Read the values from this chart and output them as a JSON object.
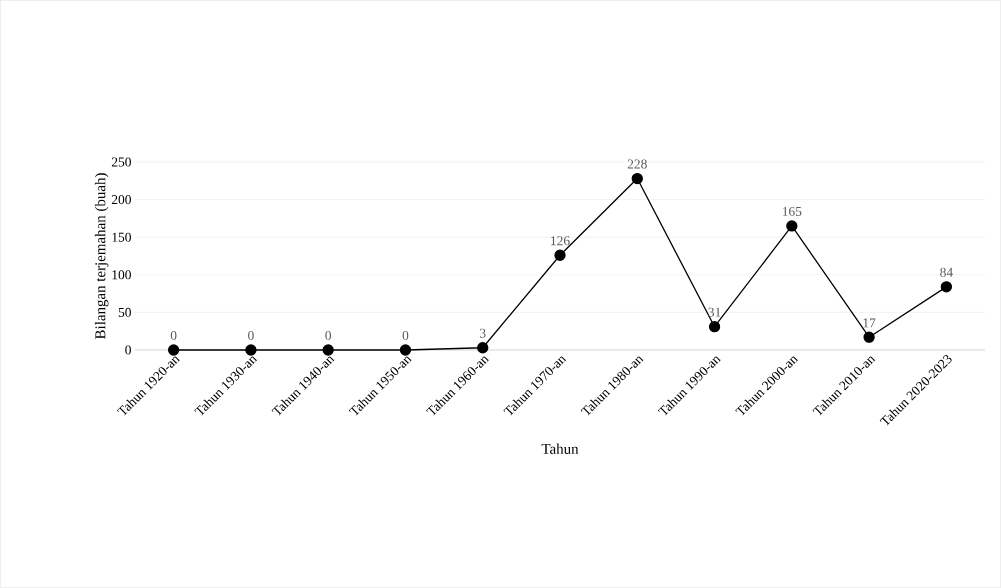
{
  "chart_data": {
    "type": "line",
    "xlabel": "Tahun",
    "ylabel": "Bilangan terjemahan (buah)",
    "categories": [
      "Tahun 1920-an",
      "Tahun 1930-an",
      "Tahun 1940-an",
      "Tahun 1950-an",
      "Tahun 1960-an",
      "Tahun 1970-an",
      "Tahun 1980-an",
      "Tahun 1990-an",
      "Tahun 2000-an",
      "Tahun 2010-an",
      "Tahun 2020-2023"
    ],
    "values": [
      0,
      0,
      0,
      0,
      3,
      126,
      228,
      31,
      165,
      17,
      84
    ],
    "color": "#000000",
    "marker": "circle",
    "line_style": "solid",
    "data_labels": true,
    "grid": "y",
    "ylim": [
      0,
      250
    ],
    "yticks": [
      0,
      50,
      100,
      150,
      200,
      250
    ]
  }
}
